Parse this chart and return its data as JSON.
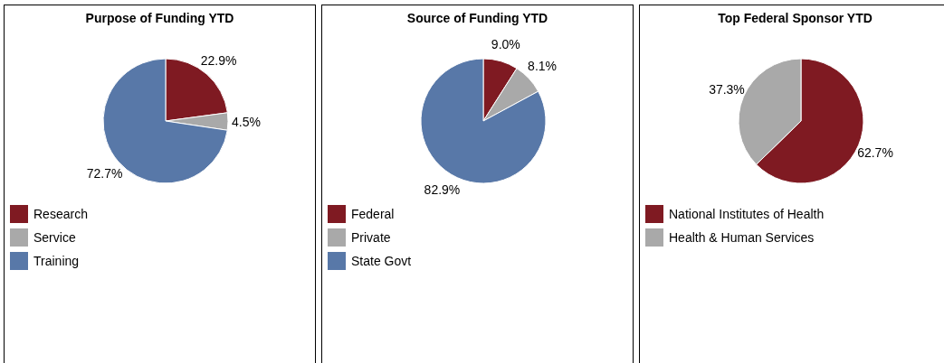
{
  "chart_data": [
    {
      "type": "pie",
      "title": "Purpose of Funding YTD",
      "categories": [
        "Research",
        "Service",
        "Training"
      ],
      "values": [
        22.9,
        4.5,
        72.7
      ],
      "value_labels": [
        "22.9%",
        "4.5%",
        "72.7%"
      ],
      "colors": [
        "#7f1a22",
        "#a9a9a9",
        "#5878a8"
      ],
      "legend": "bottom left"
    },
    {
      "type": "pie",
      "title": "Source of Funding YTD",
      "categories": [
        "Federal",
        "Private",
        "State Govt"
      ],
      "values": [
        9.0,
        8.1,
        82.9
      ],
      "value_labels": [
        "9.0%",
        "8.1%",
        "82.9%"
      ],
      "colors": [
        "#7f1a22",
        "#a9a9a9",
        "#5878a8"
      ],
      "legend": "bottom left"
    },
    {
      "type": "pie",
      "title": "Top Federal Sponsor YTD",
      "categories": [
        "National Institutes of Health",
        "Health & Human Services"
      ],
      "values": [
        62.7,
        37.3
      ],
      "value_labels": [
        "62.7%",
        "37.3%"
      ],
      "colors": [
        "#7f1a22",
        "#a9a9a9"
      ],
      "legend": "bottom left"
    }
  ]
}
